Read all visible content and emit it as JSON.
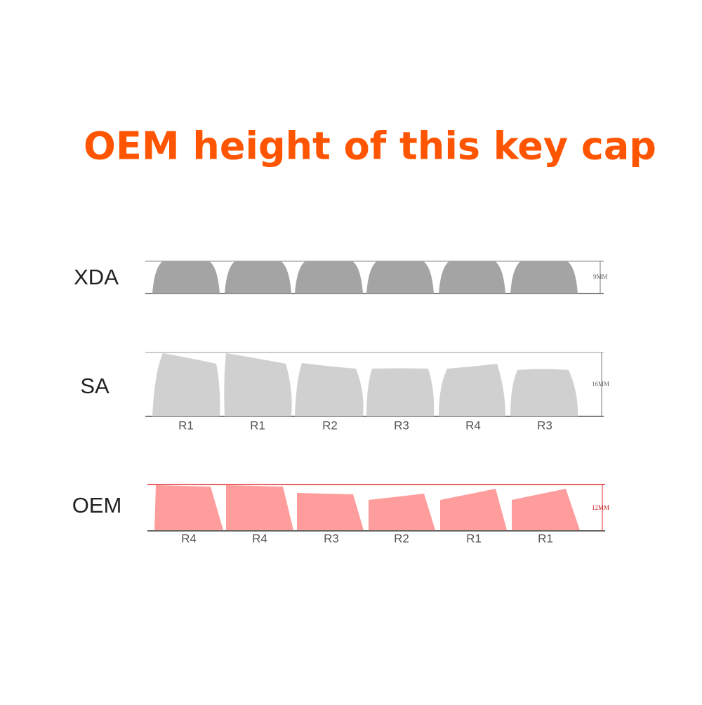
{
  "title": "OEM height of this key cap",
  "profiles": [
    {
      "name": "XDA",
      "height": "9MM"
    },
    {
      "name": "SA",
      "height": "16MM",
      "rows": [
        "R1",
        "R1",
        "R2",
        "R3",
        "R4",
        "R3"
      ]
    },
    {
      "name": "OEM",
      "height": "12MM",
      "rows": [
        "R4",
        "R4",
        "R3",
        "R2",
        "R1",
        "R1"
      ]
    }
  ]
}
